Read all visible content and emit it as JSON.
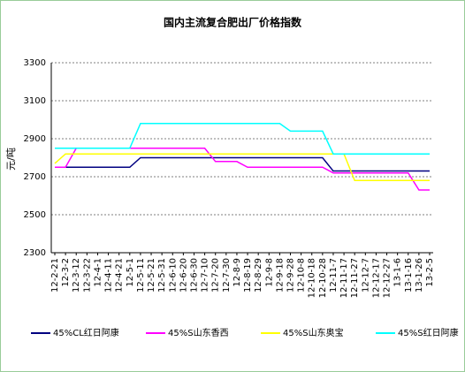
{
  "chart_data": {
    "type": "line",
    "title": "国内主流复合肥出厂价格指数",
    "y_label": "元/吨",
    "categories": [
      "12-2-21",
      "12-3-2",
      "12-3-12",
      "12-3-22",
      "12-4-1",
      "12-4-11",
      "12-4-21",
      "12-5-1",
      "12-5-11",
      "12-5-21",
      "12-5-31",
      "12-6-10",
      "12-6-20",
      "12-6-30",
      "12-7-10",
      "12-7-20",
      "12-7-30",
      "12-8-9",
      "12-8-19",
      "12-8-29",
      "12-9-8",
      "12-9-18",
      "12-9-28",
      "12-10-8",
      "12-10-18",
      "12-10-28",
      "12-11-7",
      "12-11-17",
      "12-11-27",
      "12-12-7",
      "12-12-17",
      "12-12-27",
      "13-1-6",
      "13-1-16",
      "13-1-26",
      "13-2-5"
    ],
    "series": [
      {
        "name": "45%CL红日阿康",
        "color": "#000080",
        "values": [
          2750,
          2750,
          2750,
          2750,
          2750,
          2750,
          2750,
          2750,
          2800,
          2800,
          2800,
          2800,
          2800,
          2800,
          2800,
          2800,
          2800,
          2800,
          2800,
          2800,
          2800,
          2800,
          2800,
          2800,
          2800,
          2800,
          2730,
          2730,
          2730,
          2730,
          2730,
          2730,
          2730,
          2730,
          2730,
          2730
        ]
      },
      {
        "name": "45%S山东香西",
        "color": "#ff00ff",
        "values": [
          2750,
          2750,
          2850,
          2850,
          2850,
          2850,
          2850,
          2850,
          2850,
          2850,
          2850,
          2850,
          2850,
          2850,
          2850,
          2780,
          2780,
          2780,
          2750,
          2750,
          2750,
          2750,
          2750,
          2750,
          2750,
          2750,
          2720,
          2720,
          2720,
          2720,
          2720,
          2720,
          2720,
          2720,
          2630,
          2630
        ]
      },
      {
        "name": "45%S山东奥宝",
        "color": "#ffff00",
        "values": [
          2770,
          2820,
          2820,
          2820,
          2820,
          2820,
          2820,
          2820,
          2820,
          2820,
          2820,
          2820,
          2820,
          2820,
          2820,
          2820,
          2820,
          2820,
          2820,
          2820,
          2820,
          2820,
          2820,
          2820,
          2820,
          2820,
          2820,
          2820,
          2680,
          2680,
          2680,
          2680,
          2680,
          2680,
          2680,
          2680
        ]
      },
      {
        "name": "45%S红日阿康",
        "color": "#00ffff",
        "values": [
          2850,
          2850,
          2850,
          2850,
          2850,
          2850,
          2850,
          2850,
          2980,
          2980,
          2980,
          2980,
          2980,
          2980,
          2980,
          2980,
          2980,
          2980,
          2980,
          2980,
          2980,
          2980,
          2940,
          2940,
          2940,
          2940,
          2820,
          2820,
          2820,
          2820,
          2820,
          2820,
          2820,
          2820,
          2820,
          2820
        ]
      }
    ],
    "ylim": [
      2300,
      3300
    ],
    "yticks": [
      2300,
      2500,
      2700,
      2900,
      3100,
      3300
    ],
    "grid": true
  }
}
